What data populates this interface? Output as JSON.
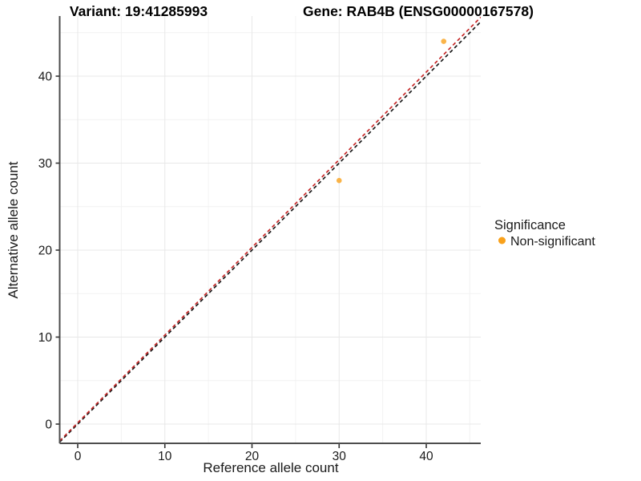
{
  "title": {
    "variant": "Variant: 19:41285993",
    "gene": "Gene: RAB4B (ENSG00000167578)"
  },
  "axes": {
    "x": {
      "label": "Reference allele count",
      "ticks": [
        "0",
        "10",
        "20",
        "30",
        "40"
      ]
    },
    "y": {
      "label": "Alternative allele count",
      "ticks": [
        "0",
        "10",
        "20",
        "30",
        "40"
      ]
    }
  },
  "legend": {
    "title": "Significance",
    "items": [
      {
        "label": "Non-significant",
        "color": "#F9A11B"
      }
    ]
  },
  "colors": {
    "point_orange": "#F9A11B",
    "identity_line": "#1A1A1A",
    "fit_line": "#C62828",
    "axis": "#4D4D4D",
    "grid_major": "#E8E8E8",
    "grid_minor": "#F2F2F2"
  },
  "chart_data": {
    "type": "scatter",
    "title": "Variant: 19:41285993   Gene: RAB4B (ENSG00000167578)",
    "xlabel": "Reference allele count",
    "ylabel": "Alternative allele count",
    "xlim": [
      -2.1,
      46.3
    ],
    "ylim": [
      -2.2,
      46.9
    ],
    "x_ticks": [
      0,
      10,
      20,
      30,
      40
    ],
    "y_ticks": [
      0,
      10,
      20,
      30,
      40
    ],
    "grid": "major and minor, light gray on white",
    "legend_position": "right",
    "series": [
      {
        "name": "Non-significant",
        "color": "#F9A11B",
        "points": [
          [
            30,
            28
          ],
          [
            42,
            44
          ]
        ]
      }
    ],
    "lines": [
      {
        "name": "identity",
        "style": "dashed",
        "color": "#1A1A1A",
        "slope": 1.0,
        "intercept": 0
      },
      {
        "name": "fit",
        "style": "dashed",
        "color": "#C62828",
        "slope": 1.008,
        "intercept": 0.15
      }
    ]
  }
}
